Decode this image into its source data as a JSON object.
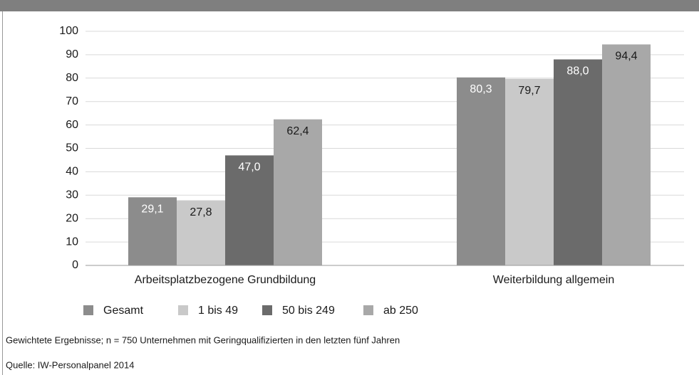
{
  "chart_data": {
    "type": "bar",
    "categories": [
      "Arbeitsplatzbezogene Grundbildung",
      "Weiterbildung allgemein"
    ],
    "series": [
      {
        "name": "Gesamt",
        "color": "#8c8c8c",
        "label_color": "#ffffff",
        "values": [
          29.1,
          80.3
        ],
        "value_labels": [
          "29,1",
          "80,3"
        ]
      },
      {
        "name": "1 bis 49",
        "color": "#c9c9c9",
        "label_color": "#1a1a1a",
        "values": [
          27.8,
          79.7
        ],
        "value_labels": [
          "27,8",
          "79,7"
        ]
      },
      {
        "name": "50 bis 249",
        "color": "#6b6b6b",
        "label_color": "#ffffff",
        "values": [
          47.0,
          88.0
        ],
        "value_labels": [
          "47,0",
          "88,0"
        ]
      },
      {
        "name": "ab 250",
        "color": "#a8a8a8",
        "label_color": "#1a1a1a",
        "values": [
          62.4,
          94.4
        ],
        "value_labels": [
          "62,4",
          "94,4"
        ]
      }
    ],
    "ylim": [
      0,
      100
    ],
    "yticks": [
      0,
      10,
      20,
      30,
      40,
      50,
      60,
      70,
      80,
      90,
      100
    ],
    "grid": true,
    "notes": [
      "Gewichtete Ergebnisse; n = 750 Unternehmen mit Geringqualifizierten in den letzten fünf Jahren",
      "Quelle: IW-Personalpanel 2014"
    ]
  }
}
